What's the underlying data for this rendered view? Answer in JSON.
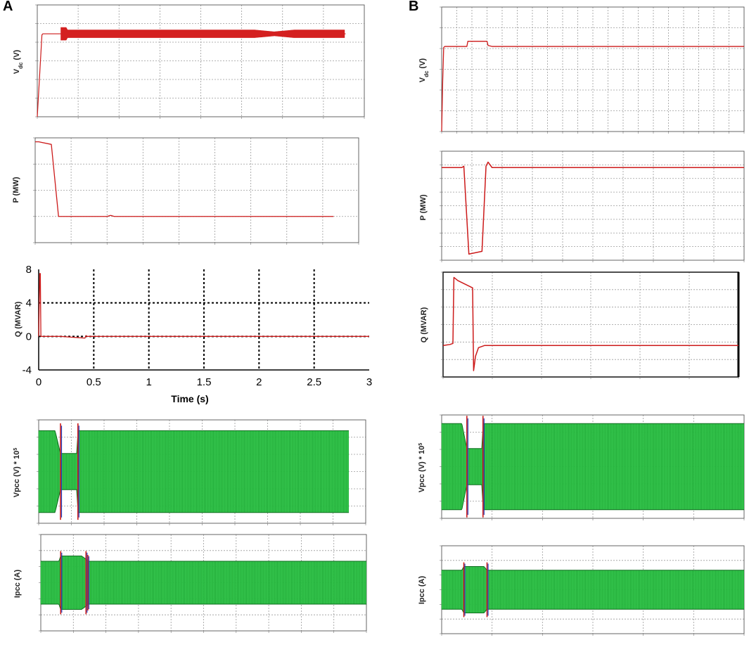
{
  "panels": {
    "left": "A",
    "right": "B"
  },
  "colors": {
    "trace_red": "#cc1a1a",
    "trace_green": "#22c73a",
    "trace_blue": "#1f3fc0",
    "grid": "#9a9a9a",
    "frame": "#555555"
  },
  "chart_data": [
    {
      "id": "A-vdc",
      "panel": "A",
      "type": "line",
      "ylabel": "V_dc (V)",
      "xlim": [
        0,
        3.5
      ],
      "ylim": [
        0,
        6
      ],
      "x": [
        0,
        0.05,
        0.06,
        0.1,
        0.2,
        0.25,
        0.28,
        0.3,
        1.5,
        1.85,
        2.0,
        3.3
      ],
      "series": [
        {
          "values": [
            0,
            4.4,
            4.45,
            4.45,
            4.45,
            4.45,
            4.45,
            4.45,
            4.45,
            4.45,
            4.45,
            4.45
          ]
        }
      ],
      "band": {
        "x_start": 0.25,
        "x_end": 3.3,
        "center": 4.45,
        "halfwidth": 0.22
      }
    },
    {
      "id": "A-p",
      "panel": "A",
      "type": "line",
      "ylabel": "P (MW)",
      "xlim": [
        0,
        1.8
      ],
      "ylim": [
        0,
        4
      ],
      "x": [
        0,
        0.02,
        0.09,
        0.13,
        0.4,
        0.42,
        0.44,
        1.66
      ],
      "series": [
        {
          "values": [
            3.85,
            3.85,
            3.75,
            1.0,
            1.0,
            1.04,
            1.0,
            1.0
          ]
        }
      ]
    },
    {
      "id": "A-q",
      "panel": "A",
      "type": "line",
      "ylabel": "Q (MVAR)",
      "xlabel": "Time (s)",
      "xlim": [
        0,
        3
      ],
      "ylim": [
        -4,
        8
      ],
      "yticks": [
        -4,
        0,
        4,
        8
      ],
      "xticks": [
        0,
        0.5,
        1,
        1.5,
        2,
        2.5,
        3
      ],
      "x": [
        0,
        0.01,
        0.015,
        0.02,
        0.03,
        0.2,
        0.42,
        0.43,
        0.44,
        3
      ],
      "series": [
        {
          "values": [
            0,
            7.5,
            7.5,
            0,
            0,
            0,
            -0.2,
            0.1,
            0,
            0
          ]
        }
      ]
    },
    {
      "id": "A-vpcc",
      "panel": "A",
      "type": "area",
      "ylabel": "Vpcc (V) * 10^5",
      "xlim": [
        0,
        3
      ],
      "ylim": [
        -1.2,
        1.2
      ],
      "x": [
        0,
        0.15,
        0.2,
        0.35,
        0.36,
        2.85
      ],
      "series": [
        {
          "values": [
            0.95,
            0.95,
            0.42,
            0.42,
            0.95,
            0.95
          ]
        }
      ]
    },
    {
      "id": "A-ipcc",
      "panel": "A",
      "type": "area",
      "ylabel": "Ipcc (A)",
      "xlim": [
        0,
        3.6
      ],
      "ylim": [
        -1.8,
        1.8
      ],
      "x": [
        0,
        0.2,
        0.22,
        0.45,
        0.5,
        0.52,
        3.6
      ],
      "series": [
        {
          "values": [
            0.8,
            0.8,
            1.0,
            1.0,
            0.88,
            0.8,
            0.8
          ]
        }
      ]
    },
    {
      "id": "B-vdc",
      "panel": "B",
      "type": "line",
      "ylabel": "V_dc (V)",
      "xlim": [
        0,
        3
      ],
      "ylim": [
        0,
        6
      ],
      "x": [
        0,
        0.01,
        0.02,
        0.03,
        0.25,
        0.26,
        0.45,
        0.46,
        0.5,
        3
      ],
      "series": [
        {
          "values": [
            0,
            2.4,
            4.05,
            4.1,
            4.1,
            4.35,
            4.35,
            4.15,
            4.1,
            4.1
          ]
        }
      ]
    },
    {
      "id": "B-p",
      "panel": "B",
      "type": "line",
      "ylabel": "P (MW)",
      "xlim": [
        0,
        3
      ],
      "ylim": [
        0,
        8
      ],
      "x": [
        0,
        0.2,
        0.22,
        0.27,
        0.4,
        0.44,
        0.46,
        0.5,
        3
      ],
      "series": [
        {
          "values": [
            6.8,
            6.8,
            6.9,
            0.45,
            0.65,
            6.9,
            7.2,
            6.8,
            6.8
          ]
        }
      ]
    },
    {
      "id": "B-q",
      "panel": "B",
      "type": "line",
      "ylabel": "Q (MVAR)",
      "xlim": [
        0,
        3
      ],
      "ylim": [
        -3,
        7
      ],
      "x": [
        0,
        0.07,
        0.1,
        0.11,
        0.15,
        0.3,
        0.31,
        0.33,
        0.36,
        0.42,
        3
      ],
      "series": [
        {
          "values": [
            0,
            0.1,
            0.2,
            6.5,
            6.2,
            5.5,
            -2.4,
            -1.0,
            -0.2,
            0,
            0
          ]
        }
      ]
    },
    {
      "id": "B-vpcc",
      "panel": "B",
      "type": "area",
      "ylabel": "Vpcc (V) * 10^5",
      "xlim": [
        0,
        3
      ],
      "ylim": [
        -1.2,
        1.2
      ],
      "x": [
        0,
        0.2,
        0.25,
        0.4,
        0.41,
        3
      ],
      "series": [
        {
          "values": [
            1.0,
            1.0,
            0.42,
            0.42,
            1.0,
            1.0
          ]
        }
      ]
    },
    {
      "id": "B-ipcc",
      "panel": "B",
      "type": "area",
      "ylabel": "Ipcc (A)",
      "xlim": [
        0,
        3
      ],
      "ylim": [
        -1.8,
        1.8
      ],
      "x": [
        0,
        0.2,
        0.22,
        0.42,
        0.45,
        3
      ],
      "series": [
        {
          "values": [
            0.8,
            0.8,
            0.95,
            0.95,
            0.8,
            0.8
          ]
        }
      ]
    }
  ]
}
